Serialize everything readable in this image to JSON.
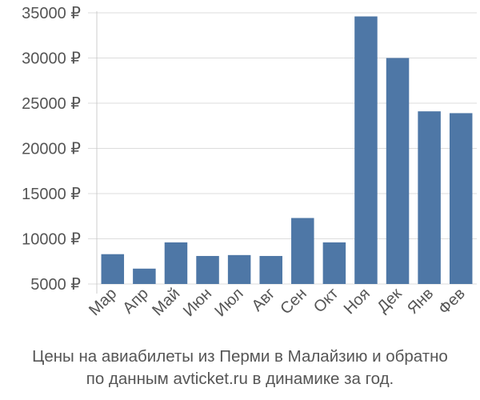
{
  "chart_data": {
    "type": "bar",
    "categories": [
      "Мар",
      "Апр",
      "Май",
      "Июн",
      "Июл",
      "Авг",
      "Сен",
      "Окт",
      "Ноя",
      "Дек",
      "Янв",
      "Фев"
    ],
    "values": [
      8300,
      6700,
      9600,
      8100,
      8200,
      8100,
      12300,
      9600,
      34600,
      30000,
      24100,
      23900
    ],
    "ylim": [
      5000,
      35000
    ],
    "yticks": [
      5000,
      10000,
      15000,
      20000,
      25000,
      30000,
      35000
    ],
    "ytick_labels": [
      "5000 ₽",
      "10000 ₽",
      "15000 ₽",
      "20000 ₽",
      "25000 ₽",
      "30000 ₽",
      "35000 ₽"
    ],
    "grid": true,
    "bar_color": "#4e77a6",
    "grid_color": "#dddddd",
    "title": "",
    "xlabel": "",
    "ylabel": ""
  },
  "caption": {
    "line1": "Цены на авиабилеты из Перми в Малайзию и обратно",
    "line2": "по данным avticket.ru в динамике за год."
  }
}
